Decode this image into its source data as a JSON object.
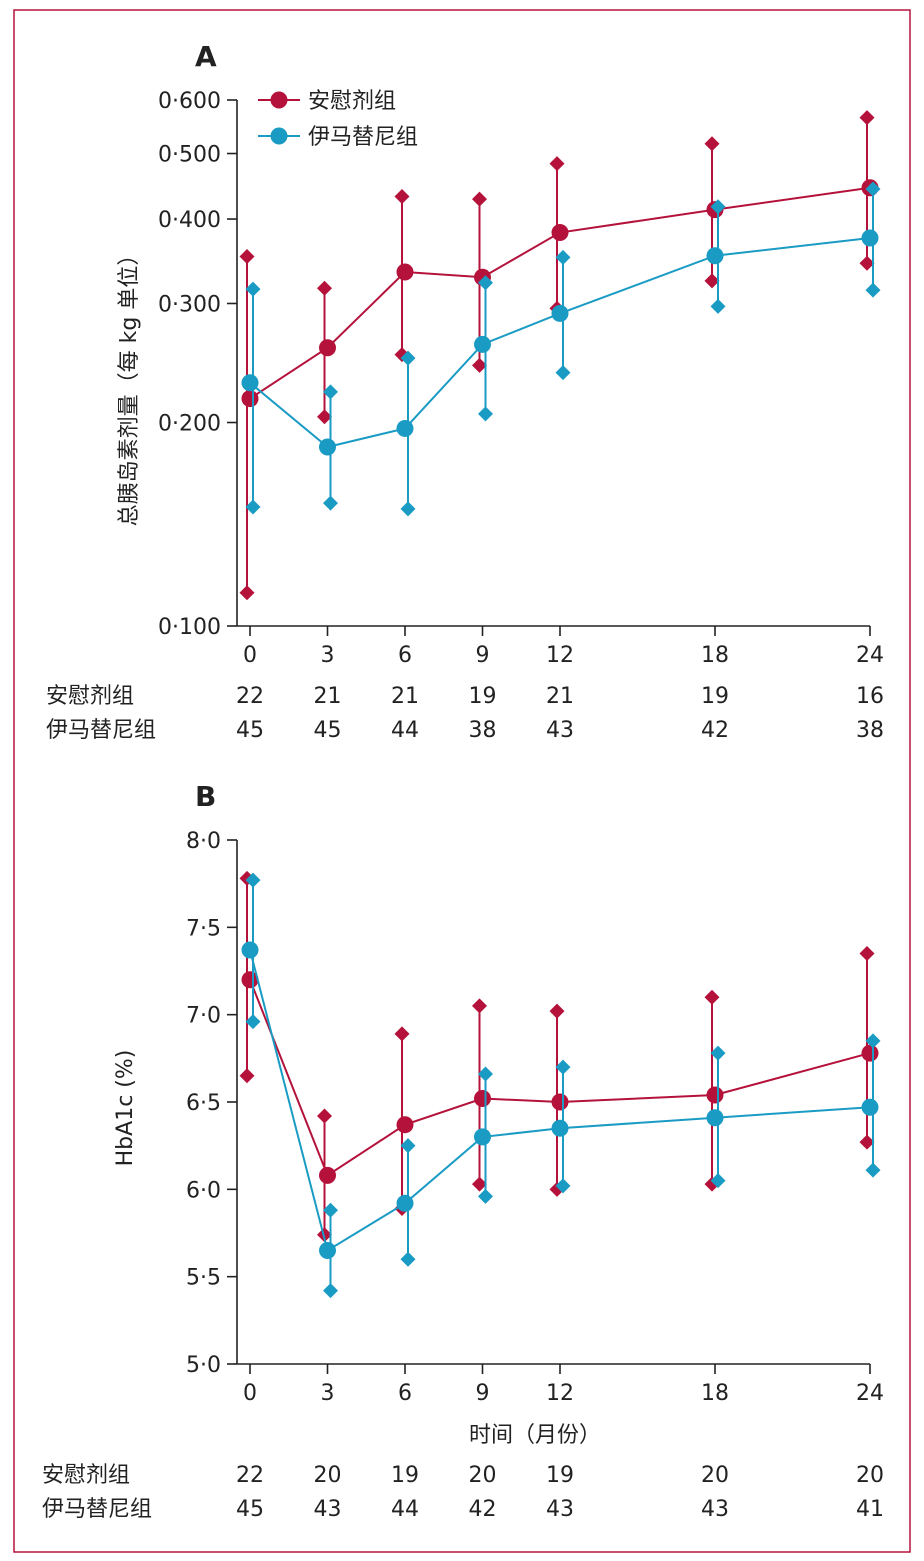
{
  "chart_data": [
    {
      "type": "line",
      "panel": "A",
      "ylabel": "总胰岛素剂量（每 kg 单位）",
      "xlabel": "",
      "y_scale": "log",
      "ylim": [
        0.1,
        0.6
      ],
      "y_ticks": [
        "0·100",
        "0·200",
        "0·300",
        "0·400",
        "0·500",
        "0·600"
      ],
      "y_tick_values": [
        0.1,
        0.2,
        0.3,
        0.4,
        0.5,
        0.6
      ],
      "x": [
        0,
        3,
        6,
        9,
        12,
        18,
        24
      ],
      "x_ticks": [
        "0",
        "3",
        "6",
        "9",
        "12",
        "18",
        "24"
      ],
      "legend_position": "top-left",
      "series": [
        {
          "name": "安慰剂组",
          "color": "#b5123b",
          "values": [
            0.217,
            0.258,
            0.334,
            0.328,
            0.382,
            0.413,
            0.445
          ],
          "lower": [
            0.112,
            0.204,
            0.252,
            0.243,
            0.295,
            0.324,
            0.344
          ],
          "upper": [
            0.352,
            0.316,
            0.432,
            0.428,
            0.483,
            0.517,
            0.565
          ]
        },
        {
          "name": "伊马替尼组",
          "color": "#1a9bc4",
          "values": [
            0.229,
            0.184,
            0.196,
            0.261,
            0.29,
            0.353,
            0.375
          ],
          "lower": [
            0.15,
            0.152,
            0.149,
            0.206,
            0.237,
            0.297,
            0.314
          ],
          "upper": [
            0.315,
            0.222,
            0.249,
            0.322,
            0.351,
            0.417,
            0.443
          ]
        }
      ],
      "n_at_risk": [
        {
          "label": "安慰剂组",
          "values": [
            "22",
            "21",
            "21",
            "19",
            "21",
            "19",
            "16"
          ]
        },
        {
          "label": "伊马替尼组",
          "values": [
            "45",
            "45",
            "44",
            "38",
            "43",
            "42",
            "38"
          ]
        }
      ]
    },
    {
      "type": "line",
      "panel": "B",
      "ylabel": "HbA1c (%)",
      "xlabel": "时间（月份）",
      "ylim": [
        5.0,
        8.0
      ],
      "y_ticks": [
        "5·0",
        "5·5",
        "6·0",
        "6·5",
        "7·0",
        "7·5",
        "8·0"
      ],
      "y_tick_values": [
        5.0,
        5.5,
        6.0,
        6.5,
        7.0,
        7.5,
        8.0
      ],
      "x": [
        0,
        3,
        6,
        9,
        12,
        18,
        24
      ],
      "x_ticks": [
        "0",
        "3",
        "6",
        "9",
        "12",
        "18",
        "24"
      ],
      "series": [
        {
          "name": "安慰剂组",
          "color": "#b5123b",
          "values": [
            7.2,
            6.08,
            6.37,
            6.52,
            6.5,
            6.54,
            6.78
          ],
          "lower": [
            6.65,
            5.74,
            5.89,
            6.03,
            6.0,
            6.03,
            6.27
          ],
          "upper": [
            7.78,
            6.42,
            6.89,
            7.05,
            7.02,
            7.1,
            7.35
          ]
        },
        {
          "name": "伊马替尼组",
          "color": "#1a9bc4",
          "values": [
            7.37,
            5.65,
            5.92,
            6.3,
            6.35,
            6.41,
            6.47
          ],
          "lower": [
            6.96,
            5.42,
            5.6,
            5.96,
            6.02,
            6.05,
            6.11
          ],
          "upper": [
            7.77,
            5.88,
            6.25,
            6.66,
            6.7,
            6.78,
            6.85
          ]
        }
      ],
      "n_at_risk": [
        {
          "label": "安慰剂组",
          "values": [
            "22",
            "20",
            "19",
            "20",
            "19",
            "20",
            "20"
          ]
        },
        {
          "label": "伊马替尼组",
          "values": [
            "45",
            "43",
            "44",
            "42",
            "43",
            "43",
            "41"
          ]
        }
      ]
    }
  ]
}
